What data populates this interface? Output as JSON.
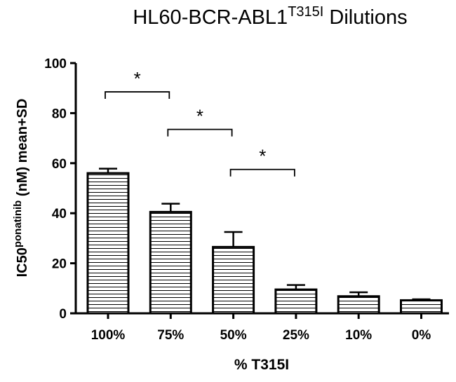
{
  "chart_data": {
    "type": "bar",
    "title": {
      "main": "HL60-BCR-ABL1",
      "superscript": "T315I",
      "suffix": " Dilutions"
    },
    "xlabel": "% T315I",
    "ylabel": {
      "main": "IC50",
      "superscript": "ponatinib",
      "suffix": " (nM) mean+SD"
    },
    "categories": [
      "100%",
      "75%",
      "50%",
      "25%",
      "10%",
      "0%"
    ],
    "values": [
      56,
      40.5,
      26.5,
      9.5,
      6.8,
      5.2
    ],
    "sd": [
      1.8,
      3.3,
      6.0,
      1.8,
      1.6,
      0.4
    ],
    "ylim": [
      0,
      100
    ],
    "yticks": [
      0,
      20,
      40,
      60,
      80,
      100
    ],
    "grid": false,
    "bar_fill": "horizontal-stripes",
    "significance": [
      {
        "from": 0,
        "to": 1,
        "y": 88.5,
        "label": "*"
      },
      {
        "from": 1,
        "to": 2,
        "y": 73.5,
        "label": "*"
      },
      {
        "from": 2,
        "to": 3,
        "y": 57.5,
        "label": "*"
      }
    ]
  }
}
